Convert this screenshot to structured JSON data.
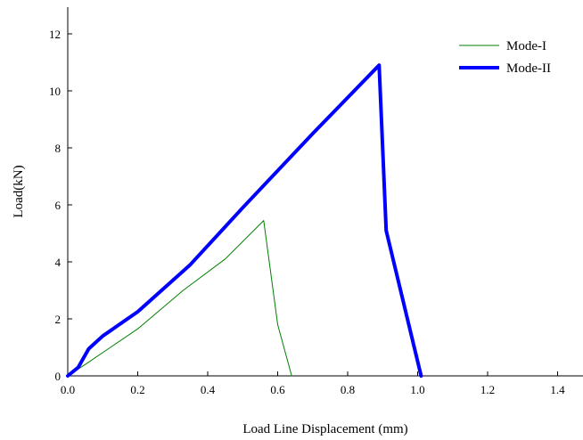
{
  "chart_data": {
    "type": "line",
    "title": "",
    "xlabel": "Load Line Displacement (mm)",
    "ylabel": "Load(kN)",
    "xlim": [
      0,
      1.45
    ],
    "ylim": [
      0,
      13
    ],
    "x_ticks": [
      "0.0",
      "0.2",
      "0.4",
      "0.6",
      "0.8",
      "1.0",
      "1.2",
      "1.4"
    ],
    "y_ticks": [
      "0",
      "2",
      "4",
      "6",
      "8",
      "10",
      "12"
    ],
    "grid": false,
    "legend_position": "top-right",
    "series": [
      {
        "name": "Mode-I",
        "color": "#008000",
        "line": "thin",
        "points": [
          [
            0,
            0
          ],
          [
            0.05,
            0.4
          ],
          [
            0.2,
            1.65
          ],
          [
            0.33,
            3.0
          ],
          [
            0.45,
            4.1
          ],
          [
            0.56,
            5.45
          ],
          [
            0.6,
            1.8
          ],
          [
            0.64,
            0.0
          ]
        ]
      },
      {
        "name": "Mode-II",
        "color": "#0000ff",
        "line": "thick",
        "points": [
          [
            0,
            0
          ],
          [
            0.03,
            0.3
          ],
          [
            0.06,
            0.95
          ],
          [
            0.1,
            1.4
          ],
          [
            0.2,
            2.25
          ],
          [
            0.35,
            3.9
          ],
          [
            0.5,
            5.9
          ],
          [
            0.7,
            8.5
          ],
          [
            0.89,
            10.9
          ],
          [
            0.91,
            5.1
          ],
          [
            1.01,
            0.0
          ]
        ]
      }
    ]
  }
}
